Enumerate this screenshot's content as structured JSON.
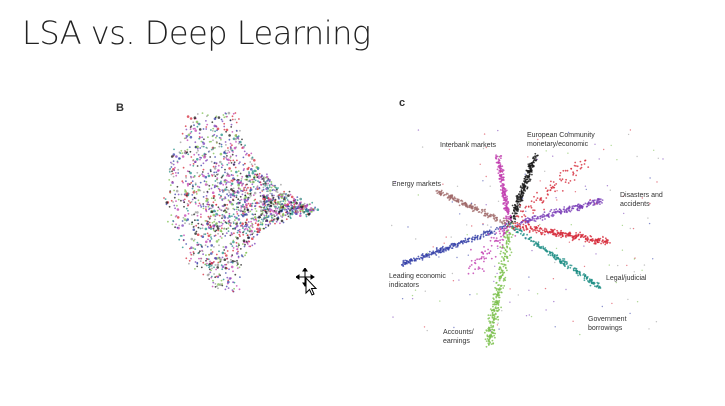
{
  "slide": {
    "title": "LSA vs. Deep Learning"
  },
  "panel_b": {
    "letter": "B"
  },
  "panel_c": {
    "letter": "c",
    "labels": {
      "interbank": "Interbank markets",
      "european_l1": "European Community",
      "european_l2": "monetary/economic",
      "energy": "Energy markets",
      "disasters_l1": "Disasters and",
      "disasters_l2": "accidents",
      "leading_l1": "Leading economic",
      "leading_l2": "indicators",
      "legal": "Legal/judicial",
      "government_l1": "Government",
      "government_l2": "borrowings",
      "accounts_l1": "Accounts/",
      "accounts_l2": "earnings"
    }
  },
  "colors": {
    "black": "#1a1a1a",
    "red": "#d62a3a",
    "blue": "#3440a8",
    "green": "#7cc04e",
    "teal": "#1f8f86",
    "magenta": "#c23fb0",
    "purple": "#7a3fb8",
    "brown": "#a06a6a",
    "gray": "#9a9a9a"
  },
  "cursor": {
    "icon": "move-cursor-icon"
  }
}
